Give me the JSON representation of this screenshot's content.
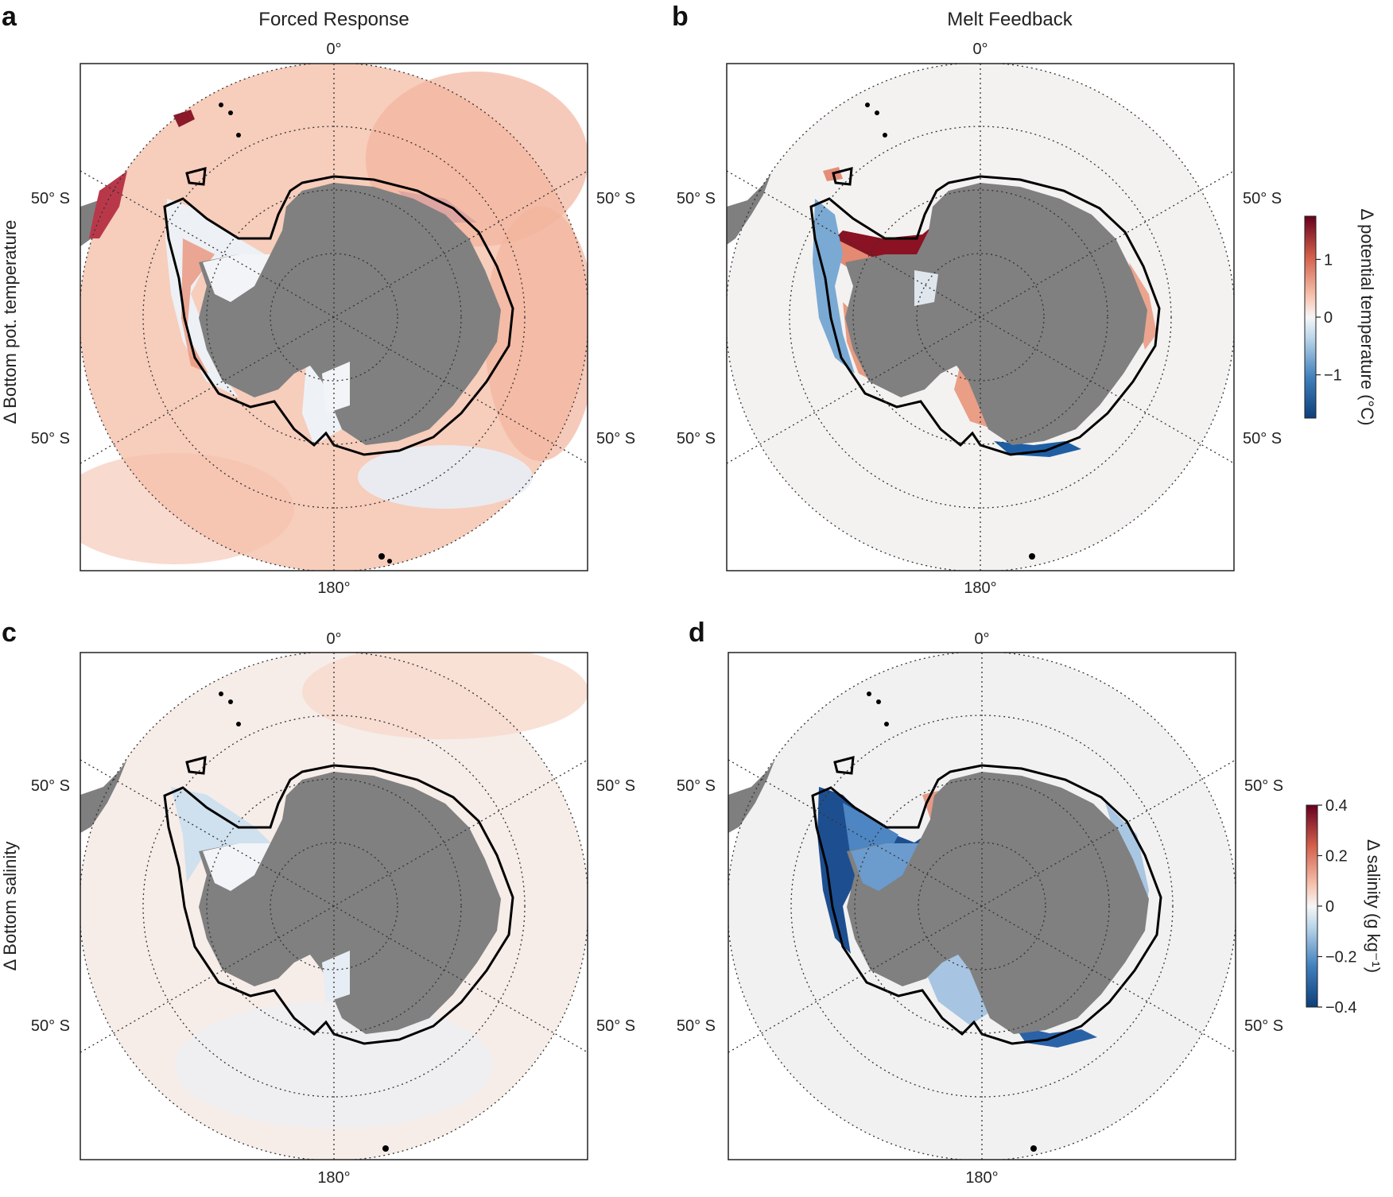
{
  "columns": [
    {
      "id": "col-forced",
      "title": "Forced Response"
    },
    {
      "id": "col-melt",
      "title": "Melt Feedback"
    }
  ],
  "rows": [
    {
      "id": "row-temperature",
      "label": "Δ Bottom pot. temperature"
    },
    {
      "id": "row-salinity",
      "label": "Δ Bottom salinity"
    }
  ],
  "panels": [
    {
      "letter": "a",
      "row": 0,
      "col": 0,
      "variable": "temperature",
      "scenario": "forced"
    },
    {
      "letter": "b",
      "row": 0,
      "col": 1,
      "variable": "temperature",
      "scenario": "melt"
    },
    {
      "letter": "c",
      "row": 1,
      "col": 0,
      "variable": "salinity",
      "scenario": "forced"
    },
    {
      "letter": "d",
      "row": 1,
      "col": 1,
      "variable": "salinity",
      "scenario": "melt"
    }
  ],
  "map_labels": {
    "lon_top": "0°",
    "lon_bottom": "180°",
    "lat": "50° S"
  },
  "colorbars": [
    {
      "id": "cb-temperature",
      "label": "Δ potential temperature (°C)",
      "vmin": -1.75,
      "vmax": 1.75,
      "ticks": [
        {
          "value": 1,
          "label": "1"
        },
        {
          "value": 0,
          "label": "0"
        },
        {
          "value": -1,
          "label": "−1"
        }
      ]
    },
    {
      "id": "cb-salinity",
      "label": "Δ salinity (g kg⁻¹)",
      "vmin": -0.4,
      "vmax": 0.4,
      "ticks": [
        {
          "value": 0.4,
          "label": "0.4"
        },
        {
          "value": 0.2,
          "label": "0.2"
        },
        {
          "value": 0,
          "label": "0"
        },
        {
          "value": -0.2,
          "label": "−0.2"
        },
        {
          "value": -0.4,
          "label": "−0.4"
        }
      ]
    }
  ],
  "colors": {
    "land": "#7f7f7f",
    "warm_strong": "#7f0a1e",
    "warm": "#d86a54",
    "warm_light": "#f7d3c4",
    "neutral": "#f4f2f0",
    "cool_light": "#cfe0ee",
    "cool": "#5b93c6",
    "cool_strong": "#0d3f7a",
    "coastline": "#000000"
  }
}
